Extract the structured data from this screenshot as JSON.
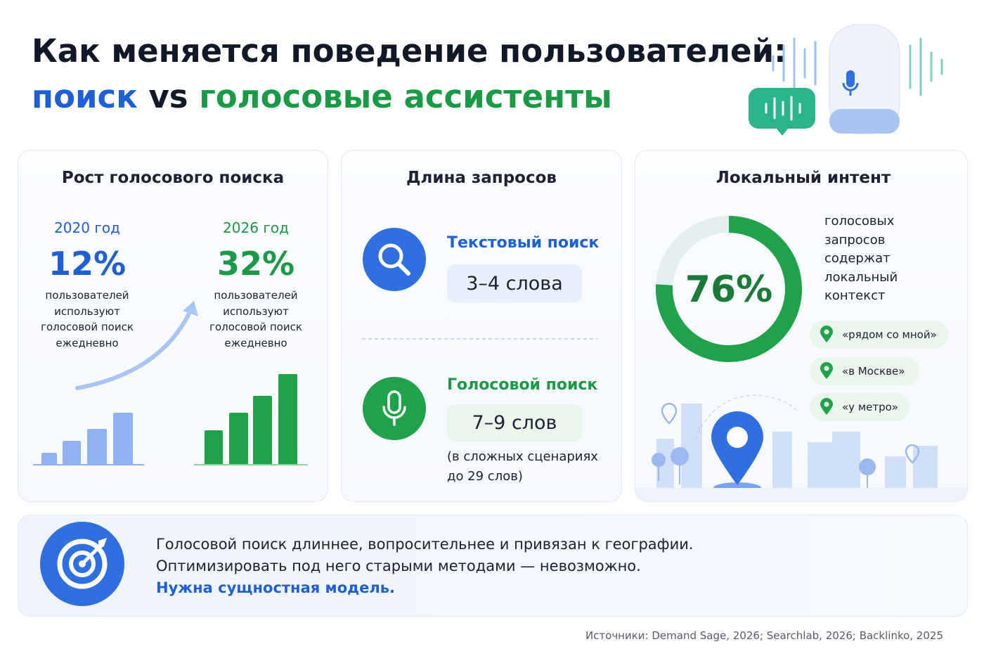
{
  "header": {
    "title_line1": "Как меняется поведение пользователей:",
    "title_search": "поиск",
    "title_vs": "vs",
    "title_voice": "голосовые ассистенты"
  },
  "growth": {
    "title": "Рост голосового поиска",
    "items": [
      {
        "year": "2020 год",
        "value": "12%",
        "text": [
          "пользователей",
          "используют",
          "голосовой поиск",
          "ежедневно"
        ]
      },
      {
        "year": "2026 год",
        "value": "32%",
        "text": [
          "пользователей",
          "используют",
          "голосовой поиск",
          "ежедневно"
        ]
      }
    ]
  },
  "length": {
    "title": "Длина запросов",
    "text_search": {
      "label": "Текстовый поиск",
      "value": "3–4 слова"
    },
    "voice_search": {
      "label": "Голосовой поиск",
      "value": "7–9 слов",
      "note": [
        "(в сложных сценариях",
        "до 29 слов)"
      ]
    }
  },
  "local": {
    "title": "Локальный интент",
    "share": {
      "value": 76,
      "label": "76%"
    },
    "text": [
      "голосовых",
      "запросов",
      "содержат",
      "локальный",
      "контекст"
    ],
    "examples": [
      "«рядом со мной»",
      "«в Москве»",
      "«у метро»"
    ]
  },
  "summary": {
    "lines": [
      "Голосовой поиск длиннее, вопросительнее и привязан к географии.",
      "Оптимизировать под него старыми методами — невозможно."
    ],
    "highlight": "Нужна сущностная модель."
  },
  "footer": {
    "sources": "Источники: Demand Sage, 2026; Searchlab, 2026; Backlinko, 2025"
  }
}
